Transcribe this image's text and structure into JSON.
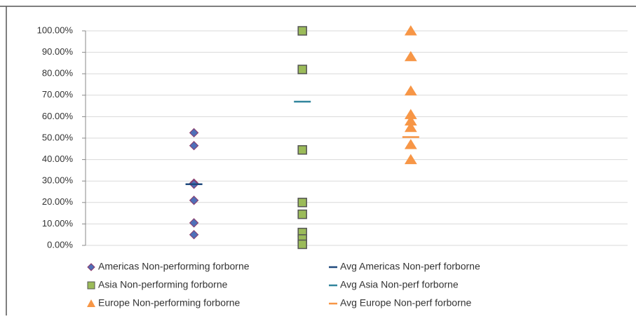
{
  "chart_data": {
    "type": "scatter",
    "xlim": [
      0,
      5
    ],
    "ylim": [
      0,
      100
    ],
    "yticks": [
      {
        "value": 0,
        "label": "0.00%"
      },
      {
        "value": 10,
        "label": "10.00%"
      },
      {
        "value": 20,
        "label": "20.00%"
      },
      {
        "value": 30,
        "label": "30.00%"
      },
      {
        "value": 40,
        "label": "40.00%"
      },
      {
        "value": 50,
        "label": "50.00%"
      },
      {
        "value": 60,
        "label": "60.00%"
      },
      {
        "value": 70,
        "label": "70.00%"
      },
      {
        "value": 80,
        "label": "80.00%"
      },
      {
        "value": 90,
        "label": "90.00%"
      },
      {
        "value": 100,
        "label": "100.00%"
      }
    ],
    "grid": true,
    "legend": "bottom",
    "series": [
      {
        "name": "Americas Non-performing forborne",
        "marker": "diamond",
        "color": "#4f6fb8",
        "edgecolor": "#8b3a6a",
        "x": [
          1,
          1,
          1,
          1,
          1,
          1,
          1
        ],
        "values": [
          52.5,
          46.5,
          29,
          28.5,
          21,
          10.5,
          5
        ]
      },
      {
        "name": "Avg Americas Non-perf forborne",
        "marker": "dash",
        "color": "#1f497d",
        "x": [
          1
        ],
        "values": [
          28.5
        ]
      },
      {
        "name": "Asia Non-performing forborne",
        "marker": "square",
        "color": "#9bbb59",
        "edgecolor": "#555555",
        "x": [
          2,
          2,
          2,
          2,
          2,
          2,
          2,
          2
        ],
        "values": [
          100,
          82,
          44.5,
          20,
          14.5,
          6,
          3,
          0.5
        ]
      },
      {
        "name": "Avg Asia Non-perf forborne",
        "marker": "dash",
        "color": "#31859c",
        "x": [
          2
        ],
        "values": [
          67
        ]
      },
      {
        "name": "Europe Non-performing forborne",
        "marker": "triangle",
        "color": "#f79646",
        "edgecolor": "#f79646",
        "x": [
          3,
          3,
          3,
          3,
          3,
          3,
          3,
          3
        ],
        "values": [
          100,
          88,
          72,
          61,
          58,
          55,
          47,
          40
        ]
      },
      {
        "name": "Avg Europe Non-perf forborne",
        "marker": "dash",
        "color": "#f79646",
        "x": [
          3
        ],
        "values": [
          50.5
        ]
      }
    ]
  }
}
